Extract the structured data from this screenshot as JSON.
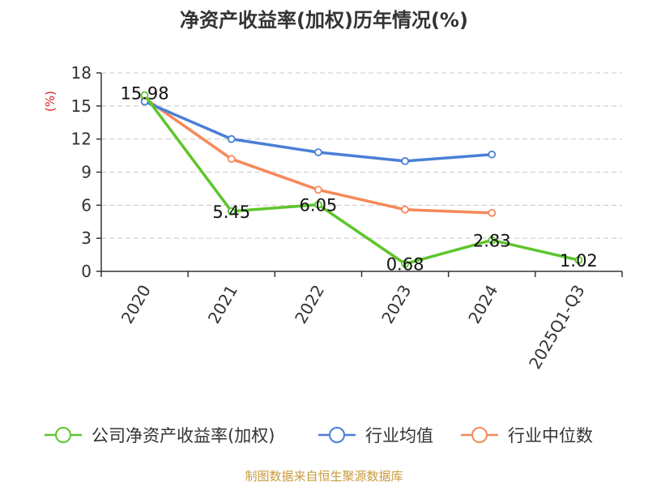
{
  "chart_data": {
    "type": "line",
    "title": "净资产收益率(加权)历年情况(%)",
    "ylabel": "(%)",
    "xlabel": "",
    "ylim": [
      0,
      18
    ],
    "yticks": [
      0,
      3,
      6,
      9,
      12,
      15,
      18
    ],
    "grid": true,
    "legend_position": "bottom",
    "categories": [
      "2020",
      "2021",
      "2022",
      "2023",
      "2024",
      "2025Q1-Q3"
    ],
    "series": [
      {
        "name": "公司净资产收益率(加权)",
        "color": "#5ec52c",
        "values": [
          15.98,
          5.45,
          6.05,
          0.68,
          2.83,
          1.02
        ],
        "labels": [
          "15.98",
          "5.45",
          "6.05",
          "0.68",
          "2.83",
          "1.02"
        ]
      },
      {
        "name": "行业均值",
        "color": "#4a7fd6",
        "values": [
          15.4,
          12.0,
          10.8,
          10.0,
          10.6,
          null
        ]
      },
      {
        "name": "行业中位数",
        "color": "#f5895a",
        "values": [
          15.7,
          10.2,
          7.4,
          5.6,
          5.3,
          null
        ]
      }
    ]
  },
  "footer": {
    "source": "制图数据来自恒生聚源数据库"
  }
}
